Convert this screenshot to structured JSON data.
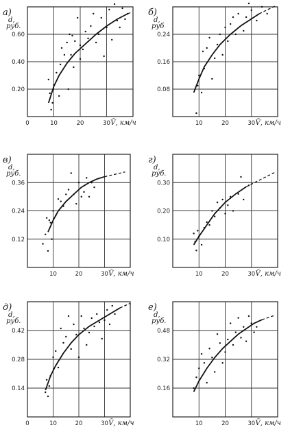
{
  "chart_data": [
    {
      "type": "scatter",
      "panel_label": "а)",
      "ylabel": "d,",
      "yunit": "руб.",
      "xlabel": "V̄, км/ч",
      "xlim": [
        0,
        40
      ],
      "ylim": [
        0,
        0.8
      ],
      "xticks": [
        "0",
        "10",
        "20",
        "30"
      ],
      "yticks": [
        "0.20",
        "0.40",
        "0.60"
      ],
      "grid": true,
      "points": [
        [
          8,
          0.27
        ],
        [
          8.5,
          0.17
        ],
        [
          9,
          0.05
        ],
        [
          9.5,
          0.1
        ],
        [
          10,
          0.23
        ],
        [
          11,
          0.32
        ],
        [
          12,
          0.15
        ],
        [
          12.5,
          0.38
        ],
        [
          13,
          0.5
        ],
        [
          14,
          0.45
        ],
        [
          15,
          0.54
        ],
        [
          15.5,
          0.2
        ],
        [
          16,
          0.6
        ],
        [
          16.5,
          0.45
        ],
        [
          17,
          0.59
        ],
        [
          17.5,
          0.36
        ],
        [
          18,
          0.55
        ],
        [
          19,
          0.72
        ],
        [
          20,
          0.42
        ],
        [
          20,
          0.52
        ],
        [
          21,
          0.49
        ],
        [
          22,
          0.62
        ],
        [
          23,
          0.57
        ],
        [
          24,
          0.66
        ],
        [
          25,
          0.75
        ],
        [
          26,
          0.54
        ],
        [
          27,
          0.6
        ],
        [
          28,
          0.72
        ],
        [
          29,
          0.44
        ],
        [
          30,
          0.65
        ],
        [
          31,
          0.78
        ],
        [
          32,
          0.56
        ],
        [
          33,
          0.82
        ],
        [
          34,
          0.7
        ],
        [
          35,
          0.65
        ],
        [
          36,
          0.79
        ],
        [
          37,
          0.71
        ],
        [
          38,
          0.75
        ]
      ],
      "curve": [
        [
          8,
          0.1
        ],
        [
          10,
          0.22
        ],
        [
          12,
          0.3
        ],
        [
          15,
          0.39
        ],
        [
          18,
          0.46
        ],
        [
          22,
          0.53
        ],
        [
          26,
          0.6
        ],
        [
          30,
          0.66
        ],
        [
          34,
          0.71
        ],
        [
          38,
          0.75
        ]
      ],
      "curve_dash_from": 39
    },
    {
      "type": "scatter",
      "panel_label": "б)",
      "ylabel": "d,",
      "yunit": "руб",
      "xlabel": "V̄, км/ч",
      "xlim": [
        0,
        40
      ],
      "ylim": [
        0,
        0.32
      ],
      "xticks": [
        "10",
        "20",
        "30"
      ],
      "yticks": [
        "0.08",
        "0.16",
        "0.24"
      ],
      "grid": true,
      "points": [
        [
          9,
          0.01
        ],
        [
          9.5,
          0.09
        ],
        [
          10,
          0.12
        ],
        [
          11,
          0.07
        ],
        [
          11.5,
          0.19
        ],
        [
          12,
          0.14
        ],
        [
          13,
          0.2
        ],
        [
          14,
          0.23
        ],
        [
          15,
          0.11
        ],
        [
          16,
          0.17
        ],
        [
          17,
          0.21
        ],
        [
          18,
          0.24
        ],
        [
          19,
          0.18
        ],
        [
          20,
          0.26
        ],
        [
          21,
          0.22
        ],
        [
          22,
          0.27
        ],
        [
          23,
          0.29
        ],
        [
          24,
          0.24
        ],
        [
          25,
          0.3
        ],
        [
          27,
          0.25
        ],
        [
          28,
          0.29
        ],
        [
          29,
          0.33
        ],
        [
          30,
          0.31
        ],
        [
          32,
          0.28
        ],
        [
          34,
          0.32
        ],
        [
          36,
          0.3
        ]
      ],
      "curve": [
        [
          8,
          0.07
        ],
        [
          10,
          0.11
        ],
        [
          12,
          0.145
        ],
        [
          15,
          0.18
        ],
        [
          18,
          0.21
        ],
        [
          22,
          0.24
        ],
        [
          26,
          0.265
        ],
        [
          30,
          0.285
        ],
        [
          33,
          0.3
        ]
      ],
      "curve_dash_to": 39
    },
    {
      "type": "scatter",
      "panel_label": "в)",
      "ylabel": "d,",
      "yunit": "руб.",
      "xlabel": "V̄, км/ч",
      "xlim": [
        0,
        40
      ],
      "ylim": [
        0,
        0.48
      ],
      "xticks": [
        "10",
        "20",
        "30"
      ],
      "yticks": [
        "0.12",
        "0.24",
        "0.36"
      ],
      "grid": true,
      "points": [
        [
          6,
          0.1
        ],
        [
          7,
          0.14
        ],
        [
          7.5,
          0.21
        ],
        [
          8,
          0.07
        ],
        [
          8.5,
          0.2
        ],
        [
          9,
          0.19
        ],
        [
          9.5,
          0.12
        ],
        [
          10,
          0.24
        ],
        [
          11,
          0.22
        ],
        [
          12,
          0.29
        ],
        [
          13,
          0.28
        ],
        [
          14,
          0.26
        ],
        [
          15,
          0.31
        ],
        [
          16,
          0.33
        ],
        [
          17,
          0.4
        ],
        [
          18,
          0.31
        ],
        [
          19,
          0.27
        ],
        [
          20,
          0.36
        ],
        [
          21,
          0.3
        ],
        [
          22,
          0.32
        ],
        [
          23,
          0.38
        ],
        [
          24,
          0.3
        ],
        [
          25,
          0.36
        ],
        [
          26,
          0.34
        ]
      ],
      "curve": [
        [
          8,
          0.15
        ],
        [
          10,
          0.2
        ],
        [
          12,
          0.24
        ],
        [
          15,
          0.28
        ],
        [
          18,
          0.31
        ],
        [
          21,
          0.34
        ],
        [
          24,
          0.36
        ],
        [
          27,
          0.375
        ],
        [
          30,
          0.385
        ]
      ],
      "curve_dash_to": 38
    },
    {
      "type": "scatter",
      "panel_label": "г)",
      "ylabel": "d,",
      "yunit": "руб.",
      "xlabel": "V̄, км/ч",
      "xlim": [
        0,
        40
      ],
      "ylim": [
        0,
        0.4
      ],
      "xticks": [
        "10",
        "20",
        "30"
      ],
      "yticks": [
        "0.10",
        "0.20",
        "0.30"
      ],
      "grid": true,
      "points": [
        [
          8,
          0.12
        ],
        [
          8.5,
          0.09
        ],
        [
          9,
          0.06
        ],
        [
          9.5,
          0.13
        ],
        [
          10,
          0.11
        ],
        [
          11,
          0.08
        ],
        [
          12,
          0.14
        ],
        [
          13,
          0.16
        ],
        [
          14,
          0.15
        ],
        [
          15,
          0.2
        ],
        [
          16,
          0.18
        ],
        [
          17,
          0.23
        ],
        [
          18,
          0.21
        ],
        [
          19,
          0.24
        ],
        [
          20,
          0.19
        ],
        [
          21,
          0.22
        ],
        [
          22,
          0.25
        ],
        [
          23,
          0.2
        ],
        [
          25,
          0.26
        ],
        [
          26,
          0.32
        ],
        [
          27,
          0.24
        ],
        [
          29,
          0.29
        ]
      ],
      "curve": [
        [
          8,
          0.08
        ],
        [
          10,
          0.11
        ],
        [
          13,
          0.15
        ],
        [
          16,
          0.19
        ],
        [
          20,
          0.23
        ],
        [
          24,
          0.26
        ],
        [
          28,
          0.285
        ]
      ],
      "curve_dash_to": 39
    },
    {
      "type": "scatter",
      "panel_label": "д)",
      "ylabel": "d,",
      "yunit": "руб.",
      "xlabel": "V̄, км/ч",
      "xlim": [
        0,
        40
      ],
      "ylim": [
        0,
        0.56
      ],
      "xticks": [
        "0",
        "10",
        "20",
        "30"
      ],
      "yticks": [
        "0.14",
        "0.28",
        "0.42"
      ],
      "grid": true,
      "points": [
        [
          7,
          0.12
        ],
        [
          7.5,
          0.18
        ],
        [
          8,
          0.1
        ],
        [
          8.5,
          0.15
        ],
        [
          9,
          0.2
        ],
        [
          10,
          0.29
        ],
        [
          11,
          0.32
        ],
        [
          12,
          0.24
        ],
        [
          13,
          0.43
        ],
        [
          14,
          0.36
        ],
        [
          15,
          0.39
        ],
        [
          16,
          0.49
        ],
        [
          17,
          0.33
        ],
        [
          18,
          0.45
        ],
        [
          19,
          0.4
        ],
        [
          20,
          0.29
        ],
        [
          21,
          0.49
        ],
        [
          22,
          0.43
        ],
        [
          23,
          0.35
        ],
        [
          24,
          0.41
        ],
        [
          25,
          0.48
        ],
        [
          26,
          0.44
        ],
        [
          27,
          0.5
        ],
        [
          28,
          0.46
        ],
        [
          29,
          0.38
        ],
        [
          30,
          0.47
        ],
        [
          31,
          0.52
        ],
        [
          32,
          0.45
        ],
        [
          33,
          0.54
        ],
        [
          34,
          0.5
        ]
      ],
      "curve": [
        [
          7,
          0.13
        ],
        [
          9,
          0.2
        ],
        [
          11,
          0.25
        ],
        [
          14,
          0.31
        ],
        [
          17,
          0.36
        ],
        [
          20,
          0.4
        ],
        [
          24,
          0.44
        ],
        [
          28,
          0.47
        ],
        [
          32,
          0.5
        ],
        [
          36,
          0.53
        ]
      ],
      "curve_dash_from": 40
    },
    {
      "type": "scatter",
      "panel_label": "е)",
      "ylabel": "d,",
      "yunit": "руб.",
      "xlabel": "V̄, км/ч",
      "xlim": [
        0,
        40
      ],
      "ylim": [
        0,
        0.64
      ],
      "xticks": [
        "10",
        "20",
        "30"
      ],
      "yticks": [
        "0.16",
        "0.32",
        "0.48"
      ],
      "grid": true,
      "points": [
        [
          8,
          0.16
        ],
        [
          9,
          0.22
        ],
        [
          10,
          0.27
        ],
        [
          11,
          0.35
        ],
        [
          12,
          0.3
        ],
        [
          13,
          0.19
        ],
        [
          14,
          0.38
        ],
        [
          15,
          0.33
        ],
        [
          16,
          0.25
        ],
        [
          17,
          0.46
        ],
        [
          18,
          0.41
        ],
        [
          19,
          0.3
        ],
        [
          20,
          0.36
        ],
        [
          21,
          0.43
        ],
        [
          22,
          0.52
        ],
        [
          23,
          0.4
        ],
        [
          24,
          0.47
        ],
        [
          25,
          0.55
        ],
        [
          26,
          0.44
        ],
        [
          27,
          0.5
        ],
        [
          28,
          0.42
        ],
        [
          29,
          0.56
        ],
        [
          30,
          0.52
        ],
        [
          31,
          0.47
        ],
        [
          32,
          0.5
        ]
      ],
      "curve": [
        [
          8,
          0.14
        ],
        [
          10,
          0.2
        ],
        [
          13,
          0.27
        ],
        [
          16,
          0.33
        ],
        [
          19,
          0.38
        ],
        [
          22,
          0.42
        ],
        [
          25,
          0.46
        ],
        [
          28,
          0.49
        ],
        [
          31,
          0.52
        ],
        [
          34,
          0.54
        ]
      ],
      "curve_dash_to": 39
    }
  ]
}
